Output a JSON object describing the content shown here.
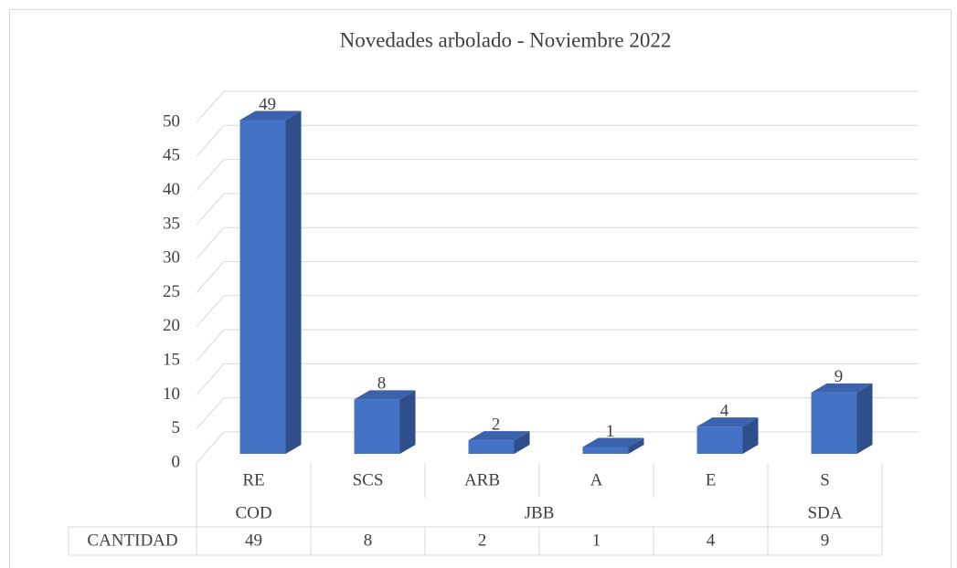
{
  "chart_data": {
    "type": "bar3d",
    "title": "Novedades arbolado - Noviembre 2022",
    "groups": [
      {
        "name": "COD",
        "categories": [
          "RE"
        ]
      },
      {
        "name": "JBB",
        "categories": [
          "SCS",
          "ARB",
          "A",
          "E"
        ]
      },
      {
        "name": "SDA",
        "categories": [
          "S"
        ]
      }
    ],
    "series": [
      {
        "name": "CANTIDAD",
        "color": "#4472c4",
        "values": [
          49,
          8,
          2,
          1,
          4,
          9
        ]
      }
    ],
    "ylim": [
      0,
      50
    ],
    "yticks": [
      0,
      5,
      10,
      15,
      20,
      25,
      30,
      35,
      40,
      45,
      50
    ],
    "grid": true,
    "data_table": true
  }
}
